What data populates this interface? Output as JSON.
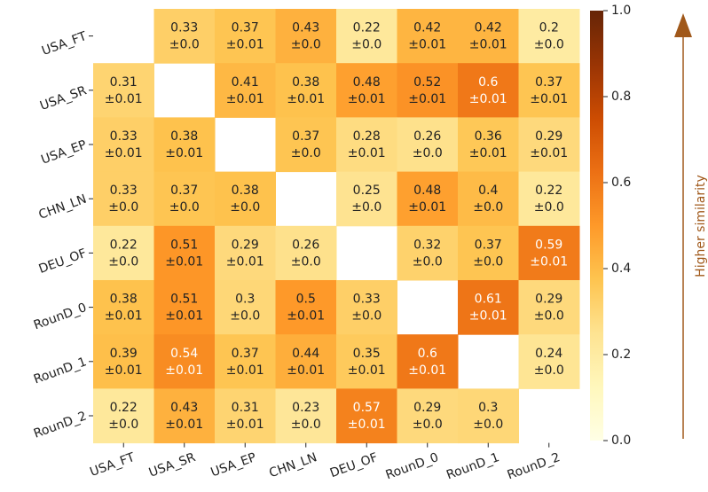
{
  "chart_data": {
    "type": "heatmap",
    "categories": [
      "USA_FT",
      "USA_SR",
      "USA_EP",
      "CHN_LN",
      "DEU_OF",
      "RounD_0",
      "RounD_1",
      "RounD_2"
    ],
    "values": [
      [
        null,
        0.33,
        0.37,
        0.43,
        0.22,
        0.42,
        0.42,
        0.2
      ],
      [
        0.31,
        null,
        0.41,
        0.38,
        0.48,
        0.52,
        0.6,
        0.37
      ],
      [
        0.33,
        0.38,
        null,
        0.37,
        0.28,
        0.26,
        0.36,
        0.29
      ],
      [
        0.33,
        0.37,
        0.38,
        null,
        0.25,
        0.48,
        0.4,
        0.22
      ],
      [
        0.22,
        0.51,
        0.29,
        0.26,
        null,
        0.32,
        0.37,
        0.59
      ],
      [
        0.38,
        0.51,
        0.3,
        0.5,
        0.33,
        null,
        0.61,
        0.29
      ],
      [
        0.39,
        0.54,
        0.37,
        0.44,
        0.35,
        0.6,
        null,
        0.24
      ],
      [
        0.22,
        0.43,
        0.31,
        0.23,
        0.57,
        0.29,
        0.3,
        null
      ]
    ],
    "errors": [
      [
        null,
        0,
        0.01,
        0,
        0,
        0.01,
        0.01,
        0
      ],
      [
        0.01,
        null,
        0.01,
        0.01,
        0.01,
        0.01,
        0.01,
        0.01
      ],
      [
        0.01,
        0.01,
        null,
        0,
        0.01,
        0,
        0.01,
        0.01
      ],
      [
        0,
        0,
        0,
        null,
        0,
        0.01,
        0,
        0
      ],
      [
        0,
        0.01,
        0.01,
        0,
        null,
        0,
        0,
        0.01
      ],
      [
        0.01,
        0.01,
        0,
        0.01,
        0,
        null,
        0.01,
        0
      ],
      [
        0.01,
        0.01,
        0.01,
        0.01,
        0.01,
        0.01,
        null,
        0
      ],
      [
        0,
        0.01,
        0.01,
        0,
        0.01,
        0,
        0,
        null
      ]
    ],
    "error_labels": [
      [
        null,
        "±0.0",
        "±0.01",
        "±0.0",
        "±0.0",
        "±0.01",
        "±0.01",
        "±0.0"
      ],
      [
        "±0.01",
        null,
        "±0.01",
        "±0.01",
        "±0.01",
        "±0.01",
        "±0.01",
        "±0.01"
      ],
      [
        "±0.01",
        "±0.01",
        null,
        "±0.0",
        "±0.01",
        "±0.0",
        "±0.01",
        "±0.01"
      ],
      [
        "±0.0",
        "±0.0",
        "±0.0",
        null,
        "±0.0",
        "±0.01",
        "±0.0",
        "±0.0"
      ],
      [
        "±0.0",
        "±0.01",
        "±0.01",
        "±0.0",
        null,
        "±0.0",
        "±0.0",
        "±0.01"
      ],
      [
        "±0.01",
        "±0.01",
        "±0.0",
        "±0.01",
        "±0.0",
        null,
        "±0.01",
        "±0.0"
      ],
      [
        "±0.01",
        "±0.01",
        "±0.01",
        "±0.01",
        "±0.01",
        "±0.01",
        null,
        "±0.0"
      ],
      [
        "±0.0",
        "±0.01",
        "±0.01",
        "±0.0",
        "±0.01",
        "±0.0",
        "±0.0",
        null
      ]
    ],
    "colormap": "YlOrBr",
    "colorbar_lim": [
      0,
      1
    ],
    "colorbar_ticks": [
      {
        "value": 0,
        "label": "0.0"
      },
      0.2,
      0.4,
      0.6,
      0.8,
      {
        "value": 1,
        "label": "1.0"
      }
    ],
    "colorbar_label": "Higher similarity",
    "arrow_color": "#a0581a"
  }
}
